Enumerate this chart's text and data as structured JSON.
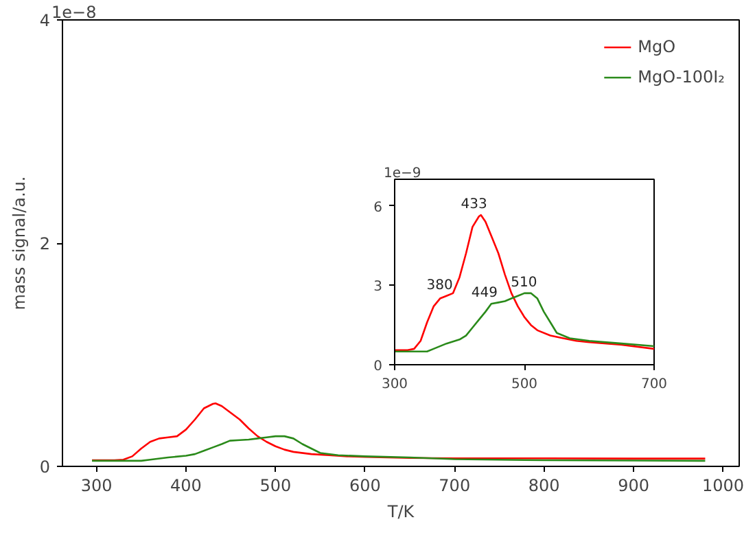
{
  "chart_data": [
    {
      "type": "line",
      "xlabel": "T/K",
      "ylabel": "mass signal/a.u.",
      "xlim": [
        262,
        1018
      ],
      "ylim": [
        0,
        4
      ],
      "xticks": [
        300,
        400,
        500,
        600,
        700,
        800,
        900,
        1000
      ],
      "yticks": [
        0,
        2,
        4
      ],
      "legend": "top right",
      "annotations": [
        "1e−8"
      ],
      "series": [
        {
          "name": "MgO",
          "color": "#ff0000",
          "x": [
            295,
            320,
            330,
            340,
            350,
            360,
            370,
            380,
            390,
            400,
            410,
            420,
            430,
            433,
            440,
            450,
            460,
            470,
            480,
            490,
            500,
            510,
            520,
            540,
            560,
            580,
            600,
            650,
            700,
            800,
            900,
            980
          ],
          "values": [
            0.055,
            0.055,
            0.06,
            0.09,
            0.16,
            0.22,
            0.25,
            0.26,
            0.27,
            0.33,
            0.42,
            0.52,
            0.56,
            0.565,
            0.54,
            0.48,
            0.42,
            0.34,
            0.27,
            0.22,
            0.18,
            0.15,
            0.13,
            0.11,
            0.1,
            0.09,
            0.085,
            0.075,
            0.072,
            0.072,
            0.07,
            0.07
          ]
        },
        {
          "name": "MgO-100I₂",
          "color": "#2a8a1a",
          "x": [
            295,
            330,
            350,
            360,
            380,
            400,
            410,
            420,
            430,
            440,
            449,
            460,
            470,
            480,
            490,
            500,
            510,
            520,
            530,
            540,
            550,
            570,
            600,
            650,
            700,
            800,
            900,
            980
          ],
          "values": [
            0.05,
            0.05,
            0.05,
            0.06,
            0.08,
            0.095,
            0.11,
            0.14,
            0.17,
            0.2,
            0.23,
            0.235,
            0.24,
            0.25,
            0.26,
            0.27,
            0.27,
            0.25,
            0.2,
            0.16,
            0.12,
            0.1,
            0.09,
            0.08,
            0.065,
            0.055,
            0.052,
            0.05
          ]
        }
      ]
    },
    {
      "type": "line",
      "xlim": [
        300,
        700
      ],
      "ylim": [
        0,
        7
      ],
      "xticks": [
        300,
        500,
        700
      ],
      "yticks": [
        0,
        3,
        6
      ],
      "annotations": [
        "1e−9",
        {
          "text": "433",
          "x": 433,
          "y": 5.65
        },
        {
          "text": "380",
          "x": 380,
          "y": 2.6
        },
        {
          "text": "449",
          "x": 449,
          "y": 2.3
        },
        {
          "text": "510",
          "x": 510,
          "y": 2.7
        }
      ],
      "series": [
        {
          "color": "#ff0000",
          "x": [
            300,
            320,
            330,
            340,
            350,
            360,
            370,
            380,
            390,
            400,
            410,
            420,
            430,
            433,
            440,
            450,
            460,
            470,
            480,
            490,
            500,
            510,
            520,
            540,
            560,
            580,
            600,
            650,
            700
          ],
          "values": [
            0.55,
            0.55,
            0.6,
            0.9,
            1.6,
            2.2,
            2.5,
            2.6,
            2.7,
            3.3,
            4.2,
            5.2,
            5.6,
            5.65,
            5.4,
            4.8,
            4.2,
            3.4,
            2.7,
            2.2,
            1.8,
            1.5,
            1.3,
            1.1,
            1.0,
            0.9,
            0.85,
            0.75,
            0.6
          ]
        },
        {
          "color": "#2a8a1a",
          "x": [
            300,
            330,
            350,
            360,
            380,
            400,
            410,
            420,
            430,
            440,
            449,
            460,
            470,
            480,
            490,
            500,
            510,
            520,
            530,
            540,
            550,
            570,
            600,
            650,
            700
          ],
          "values": [
            0.5,
            0.5,
            0.5,
            0.6,
            0.8,
            0.95,
            1.1,
            1.4,
            1.7,
            2.0,
            2.3,
            2.35,
            2.4,
            2.5,
            2.6,
            2.7,
            2.7,
            2.5,
            2.0,
            1.6,
            1.2,
            1.0,
            0.9,
            0.8,
            0.7
          ]
        }
      ]
    }
  ]
}
